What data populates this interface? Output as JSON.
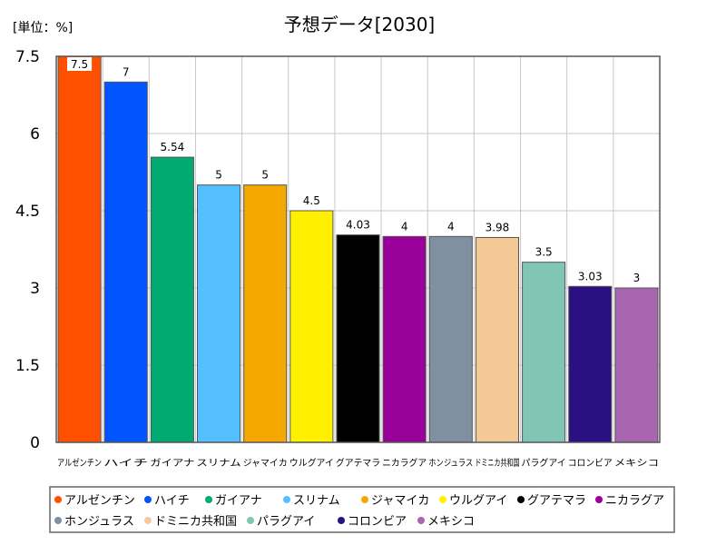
{
  "chart_data": {
    "type": "bar",
    "title": "予想データ[2030]",
    "unit_label": "[単位：%]",
    "ylim": [
      0,
      7.5
    ],
    "yticks": [
      "0",
      "1.5",
      "3",
      "4.5",
      "6",
      "7.5"
    ],
    "grid": true,
    "legend_position": "bottom",
    "categories": [
      "アルゼンチン",
      "ハイチ",
      "ガイアナ",
      "スリナム",
      "ジャマイカ",
      "ウルグアイ",
      "グアテマラ",
      "ニカラグア",
      "ホンジュラス",
      "ドミニカ共和国",
      "パラグアイ",
      "コロンビア",
      "メキシコ"
    ],
    "values": [
      7.5,
      7,
      5.54,
      5,
      5,
      4.5,
      4.03,
      4,
      4,
      3.98,
      3.5,
      3.03,
      3
    ],
    "value_labels": [
      "7.5",
      "7",
      "5.54",
      "5",
      "5",
      "4.5",
      "4.03",
      "4",
      "4",
      "3.98",
      "3.5",
      "3.03",
      "3"
    ],
    "colors": [
      "#ff5000",
      "#0055ff",
      "#00aa70",
      "#55c0ff",
      "#f5a800",
      "#fff000",
      "#000000",
      "#990099",
      "#8090a0",
      "#f5c995",
      "#80c5b5",
      "#2a1080",
      "#a866b0"
    ]
  }
}
